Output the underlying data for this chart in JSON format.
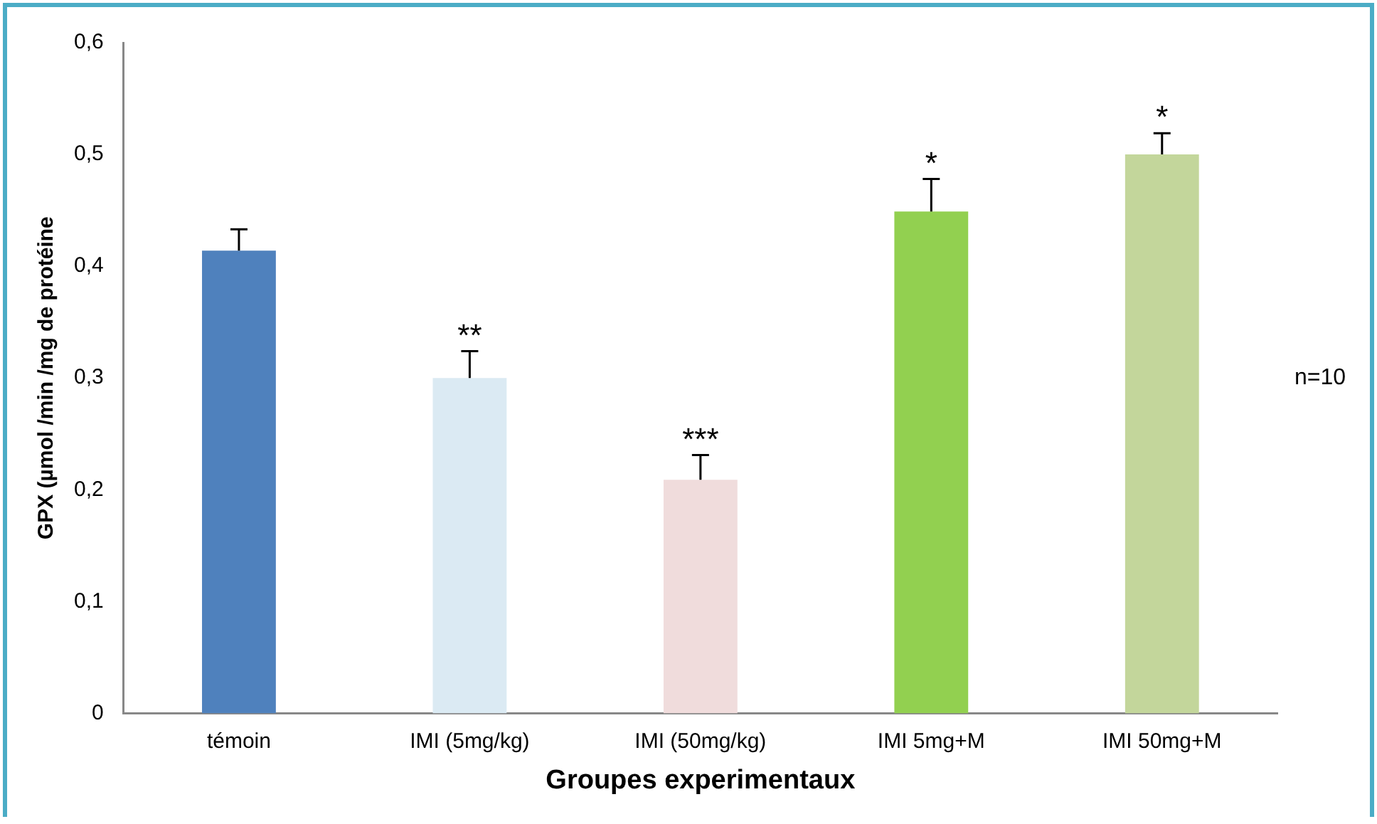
{
  "chart_data": {
    "type": "bar",
    "xlabel": "Groupes experimentaux",
    "ylabel": "GPX (µmol /min /mg de protéine",
    "categories": [
      "témoin",
      "IMI (5mg/kg)",
      "IMI (50mg/kg)",
      "IMI 5mg+M",
      "IMI 50mg+M"
    ],
    "values": [
      0.414,
      0.3,
      0.209,
      0.449,
      0.5
    ],
    "colors": [
      "#4f81bd",
      "#dbeaf3",
      "#f0dcdc",
      "#92d050",
      "#c3d69b"
    ],
    "errors": [
      [
        0.414,
        0.433
      ],
      [
        0.3,
        0.324
      ],
      [
        0.209,
        0.231
      ],
      [
        0.449,
        0.478
      ],
      [
        0.5,
        0.519
      ]
    ],
    "ylim": [
      0,
      0.6
    ],
    "yticks": [
      {
        "value": 0,
        "label": "0"
      },
      {
        "value": 0.1,
        "label": "0,1"
      },
      {
        "value": 0.2,
        "label": "0,2"
      },
      {
        "value": 0.3,
        "label": "0,3"
      },
      {
        "value": 0.4,
        "label": "0,4"
      },
      {
        "value": 0.5,
        "label": "0,5"
      },
      {
        "value": 0.6,
        "label": "0,6"
      }
    ],
    "grid": false,
    "legend": false,
    "annotations": [
      "**",
      "***",
      "*",
      "*",
      "n=10"
    ]
  }
}
